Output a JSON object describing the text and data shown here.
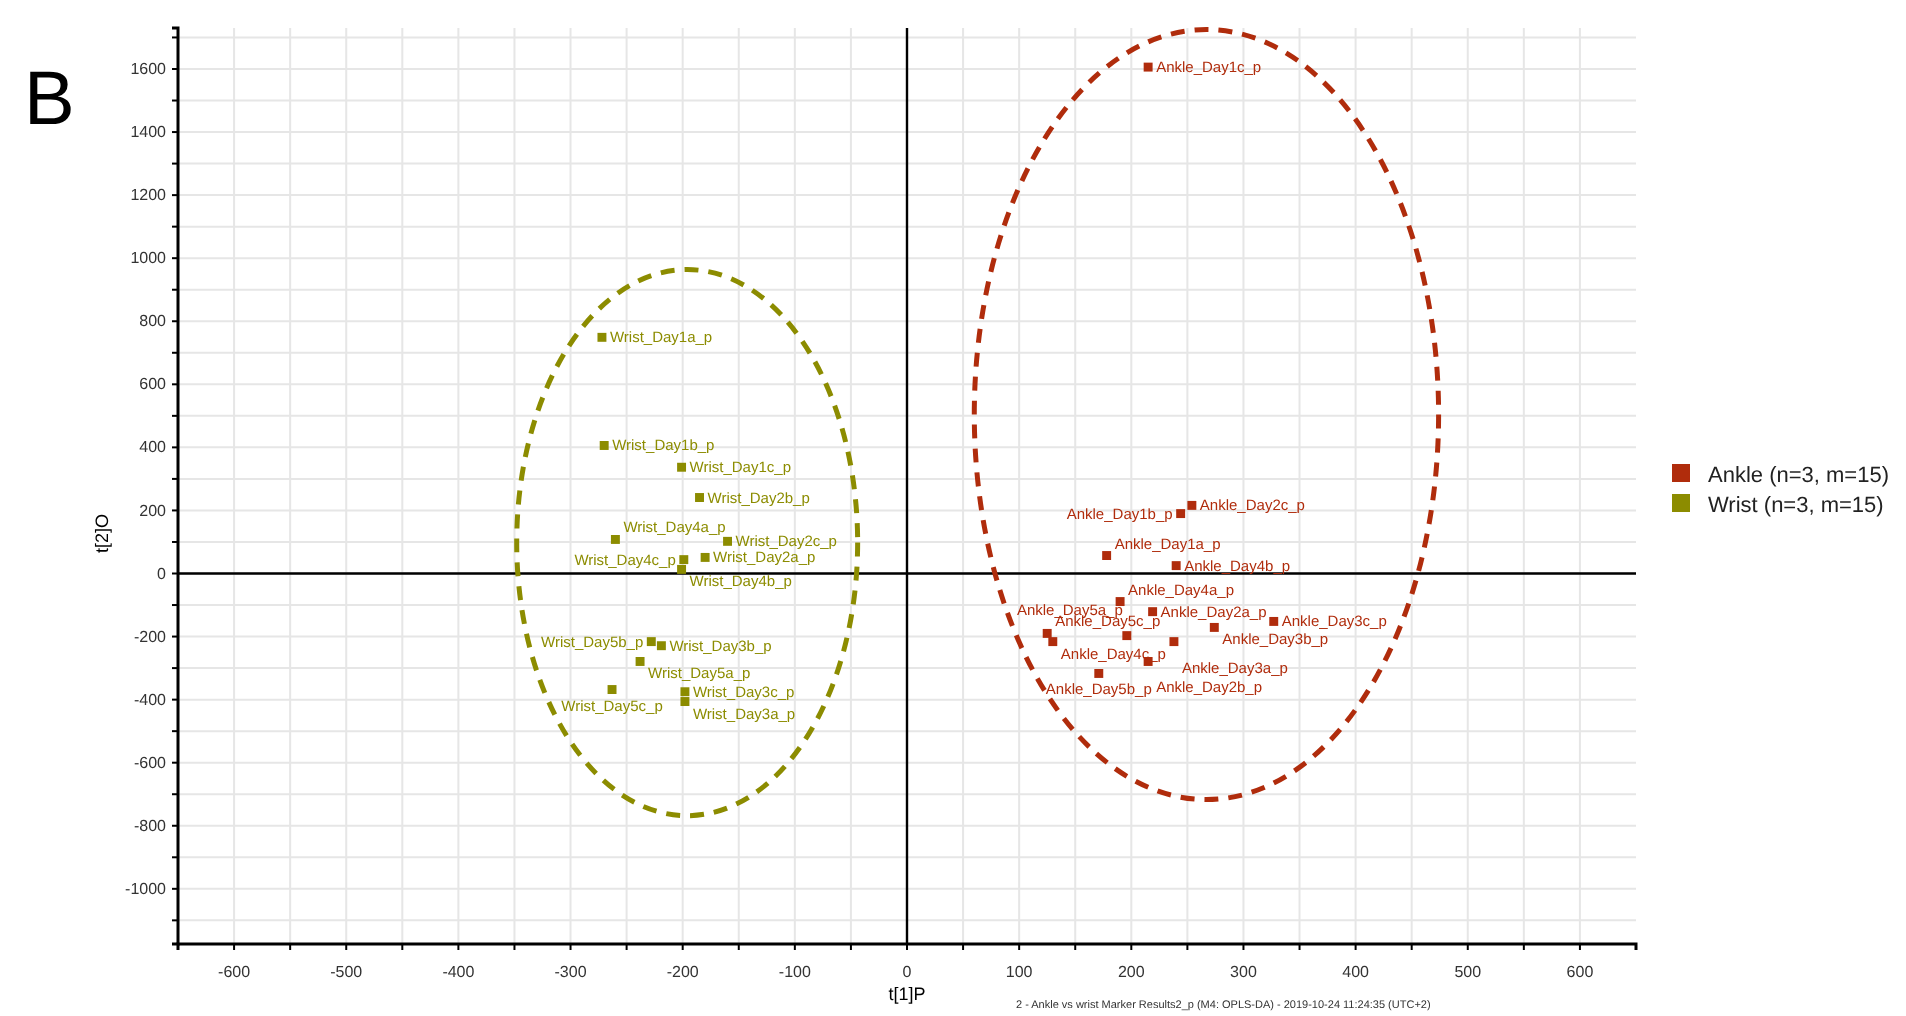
{
  "chart_data": {
    "type": "scatter",
    "xlabel": "t[1]P",
    "ylabel": "t[2]O",
    "xlim": [
      -650,
      650
    ],
    "xticks": [
      {
        "value": -650,
        "label": null
      },
      -600,
      {
        "value": -550,
        "label": null
      },
      -500,
      {
        "value": -450,
        "label": null
      },
      -400,
      {
        "value": -350,
        "label": null
      },
      -300,
      {
        "value": -250,
        "label": null
      },
      -200,
      {
        "value": -150,
        "label": null
      },
      -100,
      {
        "value": -50,
        "label": null
      },
      0,
      {
        "value": 50,
        "label": null
      },
      100,
      {
        "value": 150,
        "label": null
      },
      200,
      {
        "value": 250,
        "label": null
      },
      300,
      {
        "value": 350,
        "label": null
      },
      400,
      {
        "value": 450,
        "label": null
      },
      500,
      {
        "value": 550,
        "label": null
      },
      600
    ],
    "ylim": [
      -1175,
      1730
    ],
    "yticks": [
      {
        "value": -1100,
        "label": null
      },
      -1000,
      {
        "value": -900,
        "label": null
      },
      -800,
      {
        "value": -700,
        "label": null
      },
      -600,
      {
        "value": -500,
        "label": null
      },
      -400,
      {
        "value": -300,
        "label": null
      },
      -200,
      {
        "value": -100,
        "label": null
      },
      0,
      {
        "value": 100,
        "label": null
      },
      200,
      {
        "value": 300,
        "label": null
      },
      400,
      {
        "value": 500,
        "label": null
      },
      600,
      {
        "value": 700,
        "label": null
      },
      800,
      {
        "value": 900,
        "label": null
      },
      1000,
      {
        "value": 1100,
        "label": null
      },
      1200,
      {
        "value": 1300,
        "label": null
      },
      1400,
      {
        "value": 1500,
        "label": null
      },
      1600,
      {
        "value": 1700,
        "label": null
      }
    ],
    "grid": true,
    "legend": "right",
    "marker": "square",
    "series": [
      {
        "name": "Ankle (n=3, m=15)",
        "color": "#b02c0c",
        "x": [
          215,
          244,
          178,
          254,
          240,
          190,
          219,
          327,
          274,
          125,
          130,
          196,
          238,
          215,
          171
        ],
        "values": [
          1606,
          190,
          57,
          216,
          25,
          -89,
          -121,
          -152,
          -171,
          -190,
          -216,
          -197,
          -216,
          -279,
          -317
        ]
      },
      {
        "name": "Wrist (n=3, m=15)",
        "color": "#8c8c00",
        "x": [
          -272,
          -270,
          -201,
          -185,
          -160,
          -260,
          -180,
          -199,
          -201,
          -228,
          -219,
          -238,
          -263,
          -198,
          -198
        ],
        "values": [
          749,
          406,
          337,
          241,
          102,
          108,
          51,
          44,
          13,
          -216,
          -229,
          -279,
          -368,
          -375,
          -406
        ]
      }
    ],
    "annotations": [
      "B",
      "2 - Ankle vs wrist Marker Results2_p (M4: OPLS-DA) - 2019-10-24 11:24:35 (UTC+2)",
      {
        "text": "Ankle_Day1c_p",
        "x": 215,
        "y": 1606
      },
      {
        "text": "Ankle_Day1b_p",
        "x": 244,
        "y": 190
      },
      {
        "text": "Ankle_Day1a_p",
        "x": 178,
        "y": 57
      },
      {
        "text": "Ankle_Day2c_p",
        "x": 254,
        "y": 216
      },
      {
        "text": "Ankle_Day4b_p",
        "x": 240,
        "y": 25
      },
      {
        "text": "Ankle_Day4a_p",
        "x": 190,
        "y": -89
      },
      {
        "text": "Ankle_Day2a_p",
        "x": 219,
        "y": -121
      },
      {
        "text": "Ankle_Day3c_p",
        "x": 327,
        "y": -152
      },
      {
        "text": "Ankle_Day3b_p",
        "x": 274,
        "y": -171
      },
      {
        "text": "Ankle_Day5c_p",
        "x": 125,
        "y": -190
      },
      {
        "text": "Ankle_Day4c_p",
        "x": 130,
        "y": -216
      },
      {
        "text": "Ankle_Day5a_p",
        "x": 196,
        "y": -197
      },
      {
        "text": "Ankle_Day3a_p",
        "x": 238,
        "y": -216
      },
      {
        "text": "Ankle_Day2b_p",
        "x": 215,
        "y": -279
      },
      {
        "text": "Ankle_Day5b_p",
        "x": 171,
        "y": -317
      },
      {
        "text": "Wrist_Day1a_p",
        "x": -272,
        "y": 749
      },
      {
        "text": "Wrist_Day1b_p",
        "x": -270,
        "y": 406
      },
      {
        "text": "Wrist_Day1c_p",
        "x": -201,
        "y": 337
      },
      {
        "text": "Wrist_Day2b_p",
        "x": -185,
        "y": 241
      },
      {
        "text": "Wrist_Day2c_p",
        "x": -160,
        "y": 102
      },
      {
        "text": "Wrist_Day4a_p",
        "x": -260,
        "y": 108
      },
      {
        "text": "Wrist_Day2a_p",
        "x": -180,
        "y": 51
      },
      {
        "text": "Wrist_Day4c_p",
        "x": -199,
        "y": 44
      },
      {
        "text": "Wrist_Day4b_p",
        "x": -201,
        "y": 13
      },
      {
        "text": "Wrist_Day5b_p",
        "x": -228,
        "y": -216
      },
      {
        "text": "Wrist_Day3b_p",
        "x": -219,
        "y": -229
      },
      {
        "text": "Wrist_Day5a_p",
        "x": -238,
        "y": -279
      },
      {
        "text": "Wrist_Day5c_p",
        "x": -263,
        "y": -368
      },
      {
        "text": "Wrist_Day3c_p",
        "x": -198,
        "y": -375
      },
      {
        "text": "Wrist_Day3a_p",
        "x": -198,
        "y": -406
      }
    ]
  }
}
